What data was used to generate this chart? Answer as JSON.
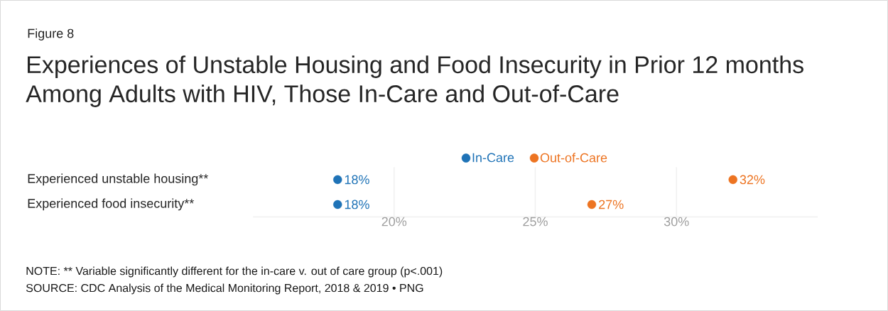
{
  "chart_data": {
    "type": "scatter",
    "subtitle": "Figure 8",
    "title": "Experiences of Unstable Housing and Food Insecurity in Prior 12 months Among Adults with HIV, Those In-Care and Out-of-Care",
    "categories": [
      "Experienced unstable housing**",
      "Experienced food insecurity**"
    ],
    "series": [
      {
        "name": "In-Care",
        "color": "#1f73b7",
        "values": [
          18,
          18
        ],
        "value_labels": [
          "18%",
          "18%"
        ]
      },
      {
        "name": "Out-of-Care",
        "color": "#ed7422",
        "values": [
          32,
          27
        ],
        "value_labels": [
          "32%",
          "27%"
        ]
      }
    ],
    "orientation": "horizontal",
    "xlim": [
      15,
      35
    ],
    "xticks": [
      {
        "value": 20,
        "label": "20%"
      },
      {
        "value": 25,
        "label": "25%"
      },
      {
        "value": 30,
        "label": "30%"
      }
    ],
    "grid": "x",
    "legend": "top",
    "marker": "circle",
    "annotations": [
      "NOTE: ** Variable significantly different for the in-care v. out of care group (p<.001)",
      "SOURCE: CDC Analysis of the Medical Monitoring Report, 2018 & 2019 • PNG"
    ]
  }
}
